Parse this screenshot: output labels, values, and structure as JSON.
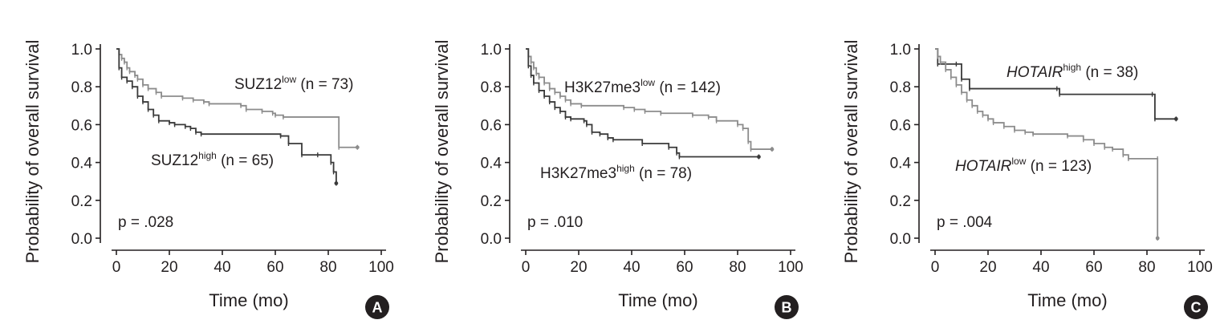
{
  "chart_data": [
    {
      "type": "line",
      "panel_letter": "A",
      "xlabel": "Time (mo)",
      "ylabel": "Probability of overall survival",
      "xlim": [
        0,
        100
      ],
      "ylim": [
        0,
        1
      ],
      "xticks": [
        "0",
        "20",
        "40",
        "60",
        "80",
        "100"
      ],
      "yticks": [
        "0.0",
        "0.2",
        "0.4",
        "0.6",
        "0.8",
        "1.0"
      ],
      "pvalue": "p = .028",
      "series": [
        {
          "name": "SUZ12low (n = 73)",
          "label_base": "SUZ12",
          "label_sup": "low",
          "label_tail": " (n = 73)",
          "label_italic": false,
          "color": "#8c8c8c",
          "points": [
            [
              0,
              1.0
            ],
            [
              1,
              0.97
            ],
            [
              2,
              0.95
            ],
            [
              3,
              0.93
            ],
            [
              4,
              0.9
            ],
            [
              5,
              0.88
            ],
            [
              7,
              0.86
            ],
            [
              8,
              0.84
            ],
            [
              10,
              0.81
            ],
            [
              12,
              0.79
            ],
            [
              15,
              0.77
            ],
            [
              17,
              0.75
            ],
            [
              25,
              0.74
            ],
            [
              29,
              0.73
            ],
            [
              33,
              0.72
            ],
            [
              35,
              0.71
            ],
            [
              47,
              0.7
            ],
            [
              49,
              0.68
            ],
            [
              55,
              0.67
            ],
            [
              59,
              0.66
            ],
            [
              60,
              0.65
            ],
            [
              63,
              0.64
            ],
            [
              84,
              0.48
            ],
            [
              91,
              0.48
            ]
          ]
        },
        {
          "name": "SUZ12high (n = 65)",
          "label_base": "SUZ12",
          "label_sup": "high",
          "label_tail": " (n = 65)",
          "label_italic": false,
          "color": "#3a3a3a",
          "points": [
            [
              0,
              1.0
            ],
            [
              1,
              0.9
            ],
            [
              2,
              0.85
            ],
            [
              4,
              0.83
            ],
            [
              6,
              0.8
            ],
            [
              8,
              0.75
            ],
            [
              10,
              0.72
            ],
            [
              12,
              0.68
            ],
            [
              14,
              0.65
            ],
            [
              16,
              0.62
            ],
            [
              20,
              0.61
            ],
            [
              22,
              0.6
            ],
            [
              26,
              0.59
            ],
            [
              28,
              0.58
            ],
            [
              30,
              0.56
            ],
            [
              32,
              0.55
            ],
            [
              62,
              0.54
            ],
            [
              65,
              0.5
            ],
            [
              70,
              0.44
            ],
            [
              76,
              0.44
            ],
            [
              81,
              0.4
            ],
            [
              82,
              0.35
            ],
            [
              83,
              0.29
            ]
          ]
        }
      ]
    },
    {
      "type": "line",
      "panel_letter": "B",
      "xlabel": "Time (mo)",
      "ylabel": "Probability of overall survival",
      "xlim": [
        0,
        100
      ],
      "ylim": [
        0,
        1
      ],
      "xticks": [
        "0",
        "20",
        "40",
        "60",
        "80",
        "100"
      ],
      "yticks": [
        "0.0",
        "0.2",
        "0.4",
        "0.6",
        "0.8",
        "1.0"
      ],
      "pvalue": "p = .010",
      "series": [
        {
          "name": "H3K27me3low (n = 142)",
          "label_base": "H3K27me3",
          "label_sup": "low",
          "label_tail": " (n = 142)",
          "label_italic": false,
          "color": "#8c8c8c",
          "points": [
            [
              0,
              1.0
            ],
            [
              1,
              0.96
            ],
            [
              2,
              0.93
            ],
            [
              3,
              0.9
            ],
            [
              4,
              0.87
            ],
            [
              5,
              0.85
            ],
            [
              7,
              0.82
            ],
            [
              9,
              0.79
            ],
            [
              11,
              0.77
            ],
            [
              13,
              0.75
            ],
            [
              15,
              0.73
            ],
            [
              17,
              0.71
            ],
            [
              21,
              0.7
            ],
            [
              37,
              0.69
            ],
            [
              41,
              0.68
            ],
            [
              45,
              0.67
            ],
            [
              51,
              0.66
            ],
            [
              63,
              0.65
            ],
            [
              69,
              0.64
            ],
            [
              72,
              0.62
            ],
            [
              80,
              0.6
            ],
            [
              82,
              0.58
            ],
            [
              84,
              0.51
            ],
            [
              85,
              0.47
            ],
            [
              93,
              0.47
            ]
          ]
        },
        {
          "name": "H3K27me3high (n = 78)",
          "label_base": "H3K27me3",
          "label_sup": "high",
          "label_tail": " (n = 78)",
          "label_italic": false,
          "color": "#3a3a3a",
          "points": [
            [
              0,
              1.0
            ],
            [
              1,
              0.91
            ],
            [
              2,
              0.86
            ],
            [
              3,
              0.82
            ],
            [
              5,
              0.78
            ],
            [
              7,
              0.75
            ],
            [
              9,
              0.72
            ],
            [
              11,
              0.69
            ],
            [
              13,
              0.67
            ],
            [
              15,
              0.64
            ],
            [
              17,
              0.63
            ],
            [
              22,
              0.62
            ],
            [
              23,
              0.6
            ],
            [
              25,
              0.56
            ],
            [
              28,
              0.55
            ],
            [
              31,
              0.53
            ],
            [
              33,
              0.52
            ],
            [
              44,
              0.5
            ],
            [
              54,
              0.48
            ],
            [
              57,
              0.45
            ],
            [
              58,
              0.43
            ],
            [
              88,
              0.43
            ]
          ]
        }
      ]
    },
    {
      "type": "line",
      "panel_letter": "C",
      "xlabel": "Time (mo)",
      "ylabel": "Probability of overall survival",
      "xlim": [
        0,
        100
      ],
      "ylim": [
        0,
        1
      ],
      "xticks": [
        "0",
        "20",
        "40",
        "60",
        "80",
        "100"
      ],
      "yticks": [
        "0.0",
        "0.2",
        "0.4",
        "0.6",
        "0.8",
        "1.0"
      ],
      "pvalue": "p = .004",
      "series": [
        {
          "name": "HOTAIRhigh (n = 38)",
          "label_base": "HOTAIR",
          "label_sup": "high",
          "label_tail": " (n = 38)",
          "label_italic": true,
          "color": "#3a3a3a",
          "points": [
            [
              0,
              1.0
            ],
            [
              1,
              0.92
            ],
            [
              8,
              0.92
            ],
            [
              10,
              0.84
            ],
            [
              13,
              0.79
            ],
            [
              46,
              0.79
            ],
            [
              47,
              0.76
            ],
            [
              82,
              0.76
            ],
            [
              83,
              0.63
            ],
            [
              91,
              0.63
            ]
          ]
        },
        {
          "name": "HOTAIRlow (n = 123)",
          "label_base": "HOTAIR",
          "label_sup": "low",
          "label_tail": " (n = 123)",
          "label_italic": true,
          "color": "#8c8c8c",
          "points": [
            [
              0,
              1.0
            ],
            [
              1,
              0.96
            ],
            [
              2,
              0.93
            ],
            [
              4,
              0.89
            ],
            [
              6,
              0.85
            ],
            [
              8,
              0.81
            ],
            [
              10,
              0.77
            ],
            [
              12,
              0.73
            ],
            [
              14,
              0.7
            ],
            [
              16,
              0.67
            ],
            [
              18,
              0.65
            ],
            [
              20,
              0.63
            ],
            [
              22,
              0.61
            ],
            [
              26,
              0.59
            ],
            [
              30,
              0.57
            ],
            [
              34,
              0.56
            ],
            [
              37,
              0.55
            ],
            [
              50,
              0.54
            ],
            [
              56,
              0.52
            ],
            [
              60,
              0.5
            ],
            [
              64,
              0.48
            ],
            [
              67,
              0.47
            ],
            [
              71,
              0.44
            ],
            [
              73,
              0.42
            ],
            [
              84,
              0.42
            ],
            [
              84,
              0.0
            ]
          ]
        }
      ]
    }
  ]
}
